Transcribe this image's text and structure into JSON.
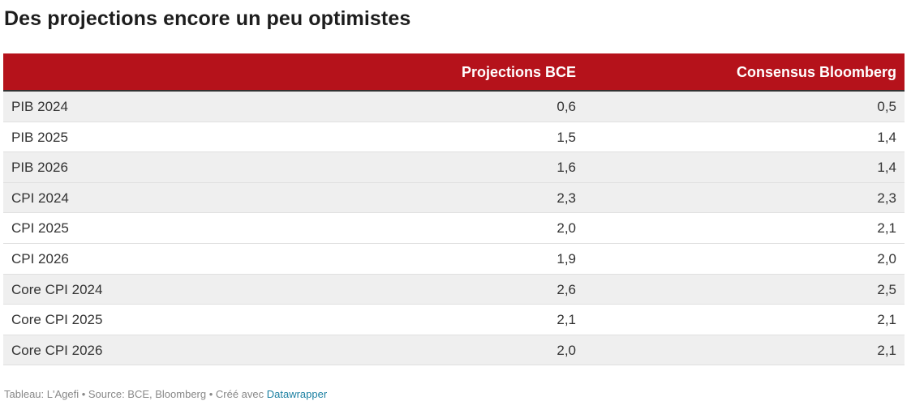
{
  "title": "Des projections encore un peu optimistes",
  "footer": {
    "text": "Tableau: L'Agefi • Source: BCE, Bloomberg • Créé avec ",
    "link": "Datawrapper"
  },
  "colors": {
    "header_bg": "#b5121b",
    "header_text": "#ffffff",
    "row_shaded": "#efefef",
    "link": "#1d81a2"
  },
  "chart_data": {
    "type": "table",
    "title": "Des projections encore un peu optimistes",
    "columns": [
      "",
      "Projections BCE",
      "Consensus Bloomberg"
    ],
    "rows": [
      {
        "label": "PIB 2024",
        "ecb": "0,6",
        "bloomberg": "0,5"
      },
      {
        "label": "PIB 2025",
        "ecb": "1,5",
        "bloomberg": "1,4"
      },
      {
        "label": "PIB 2026",
        "ecb": "1,6",
        "bloomberg": "1,4"
      },
      {
        "label": "CPI 2024",
        "ecb": "2,3",
        "bloomberg": "2,3"
      },
      {
        "label": "CPI 2025",
        "ecb": "2,0",
        "bloomberg": "2,1"
      },
      {
        "label": "CPI 2026",
        "ecb": "1,9",
        "bloomberg": "2,0"
      },
      {
        "label": "Core CPI 2024",
        "ecb": "2,6",
        "bloomberg": "2,5"
      },
      {
        "label": "Core CPI 2025",
        "ecb": "2,1",
        "bloomberg": "2,1"
      },
      {
        "label": "Core CPI 2026",
        "ecb": "2,0",
        "bloomberg": "2,1"
      }
    ],
    "row_shading": [
      "shaded",
      "white",
      "shaded",
      "shaded",
      "white",
      "white",
      "shaded",
      "white",
      "shaded"
    ]
  }
}
